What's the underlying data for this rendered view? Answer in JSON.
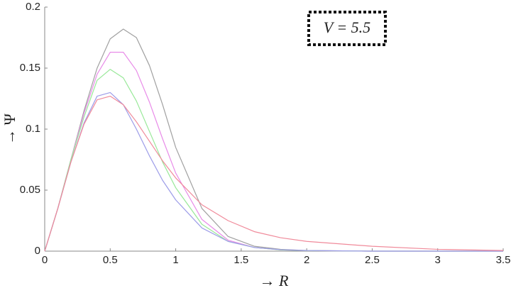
{
  "chart_data": {
    "type": "line",
    "x_label": "→ R",
    "y_label": "→ Ψ",
    "annotation": "V = 5.5",
    "x": [
      0,
      0.1,
      0.2,
      0.3,
      0.4,
      0.5,
      0.6,
      0.7,
      0.8,
      0.9,
      1,
      1.2,
      1.4,
      1.6,
      1.8,
      2,
      2.5,
      3,
      3.5
    ],
    "series": [
      {
        "color": "#a0a0a0",
        "values": [
          0,
          0.035,
          0.075,
          0.115,
          0.15,
          0.174,
          0.182,
          0.175,
          0.152,
          0.12,
          0.085,
          0.035,
          0.012,
          0.004,
          0.0015,
          0.0005,
          0,
          0,
          0
        ]
      },
      {
        "color": "#e88be8",
        "values": [
          0,
          0.035,
          0.075,
          0.113,
          0.145,
          0.163,
          0.163,
          0.148,
          0.122,
          0.092,
          0.064,
          0.026,
          0.009,
          0.003,
          0.001,
          0.0004,
          0,
          0,
          0
        ]
      },
      {
        "color": "#98e898",
        "values": [
          0,
          0.035,
          0.075,
          0.11,
          0.14,
          0.149,
          0.142,
          0.123,
          0.098,
          0.073,
          0.052,
          0.022,
          0.008,
          0.003,
          0.001,
          0.0004,
          0,
          0,
          0
        ]
      },
      {
        "color": "#9c9ce8",
        "values": [
          0,
          0.035,
          0.073,
          0.105,
          0.127,
          0.13,
          0.12,
          0.1,
          0.078,
          0.058,
          0.042,
          0.019,
          0.008,
          0.003,
          0.0012,
          0.0005,
          0,
          0,
          0
        ]
      },
      {
        "color": "#f08a9a",
        "values": [
          0,
          0.035,
          0.073,
          0.104,
          0.124,
          0.127,
          0.12,
          0.106,
          0.09,
          0.074,
          0.06,
          0.038,
          0.025,
          0.016,
          0.011,
          0.008,
          0.004,
          0.0015,
          0.0005
        ]
      }
    ],
    "xlim": [
      0,
      3.5
    ],
    "xticks": [
      0,
      0.5,
      1,
      1.5,
      2,
      2.5,
      3,
      3.5
    ],
    "ylim": [
      0,
      0.2
    ],
    "yticks": [
      0,
      0.05,
      0.1,
      0.15,
      0.2
    ],
    "grid": false
  }
}
